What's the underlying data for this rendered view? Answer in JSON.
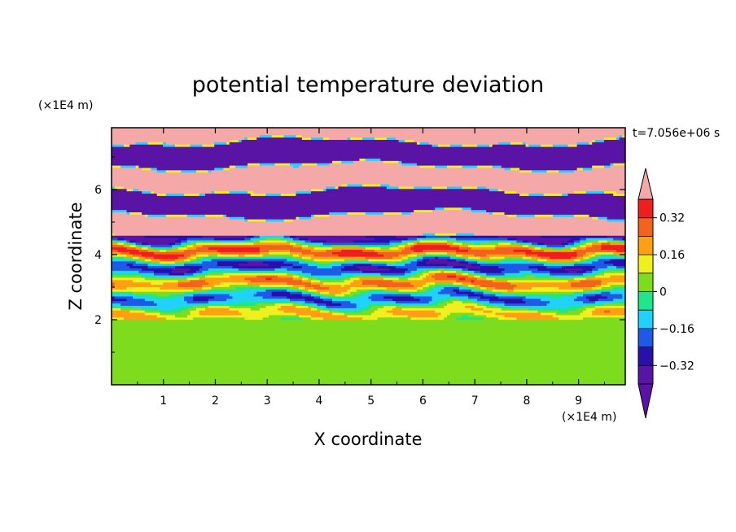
{
  "chart_data": {
    "type": "heatmap",
    "title": "potential temperature deviation",
    "xlabel": "X coordinate",
    "ylabel": "Z coordinate",
    "x_unit": "(×1E4 m)",
    "y_unit": "(×1E4 m)",
    "time_label": "t=7.056e+06 s",
    "xlim": [
      0,
      9.9
    ],
    "ylim": [
      0,
      7.9
    ],
    "x_ticks": [
      1,
      2,
      3,
      4,
      5,
      6,
      7,
      8,
      9
    ],
    "y_ticks": [
      2,
      4,
      6
    ],
    "x_tick_labels": [
      "1",
      "2",
      "3",
      "4",
      "5",
      "6",
      "7",
      "8",
      "9"
    ],
    "y_tick_labels": [
      "2",
      "4",
      "6"
    ],
    "colorbar": {
      "levels": [
        -0.4,
        -0.32,
        -0.24,
        -0.16,
        -0.08,
        0,
        0.08,
        0.16,
        0.24,
        0.32,
        0.4
      ],
      "tick_values": [
        0.32,
        0.16,
        0,
        -0.16,
        -0.32
      ],
      "tick_labels": [
        "0.32",
        "0.16",
        "0",
        "−0.16",
        "−0.32"
      ],
      "colors": [
        "#5a14a5",
        "#2a10a8",
        "#1e5ae6",
        "#20d2ff",
        "#1ee68c",
        "#7ddc1e",
        "#f0f01e",
        "#ffa014",
        "#f0641e",
        "#f01e1e",
        "#f5a8a8"
      ],
      "extend": "both"
    },
    "regions": [
      {
        "z_range": [
          0,
          2.0
        ],
        "description": "green-dominated lower layer (values ~0 to 0.08)"
      },
      {
        "z_range": [
          2.0,
          4.5
        ],
        "description": "banded multicolor mixing zone"
      },
      {
        "z_range": [
          4.5,
          7.9
        ],
        "description": "alternating pink and purple horizontal bands (saturated ±0.4)"
      }
    ]
  }
}
